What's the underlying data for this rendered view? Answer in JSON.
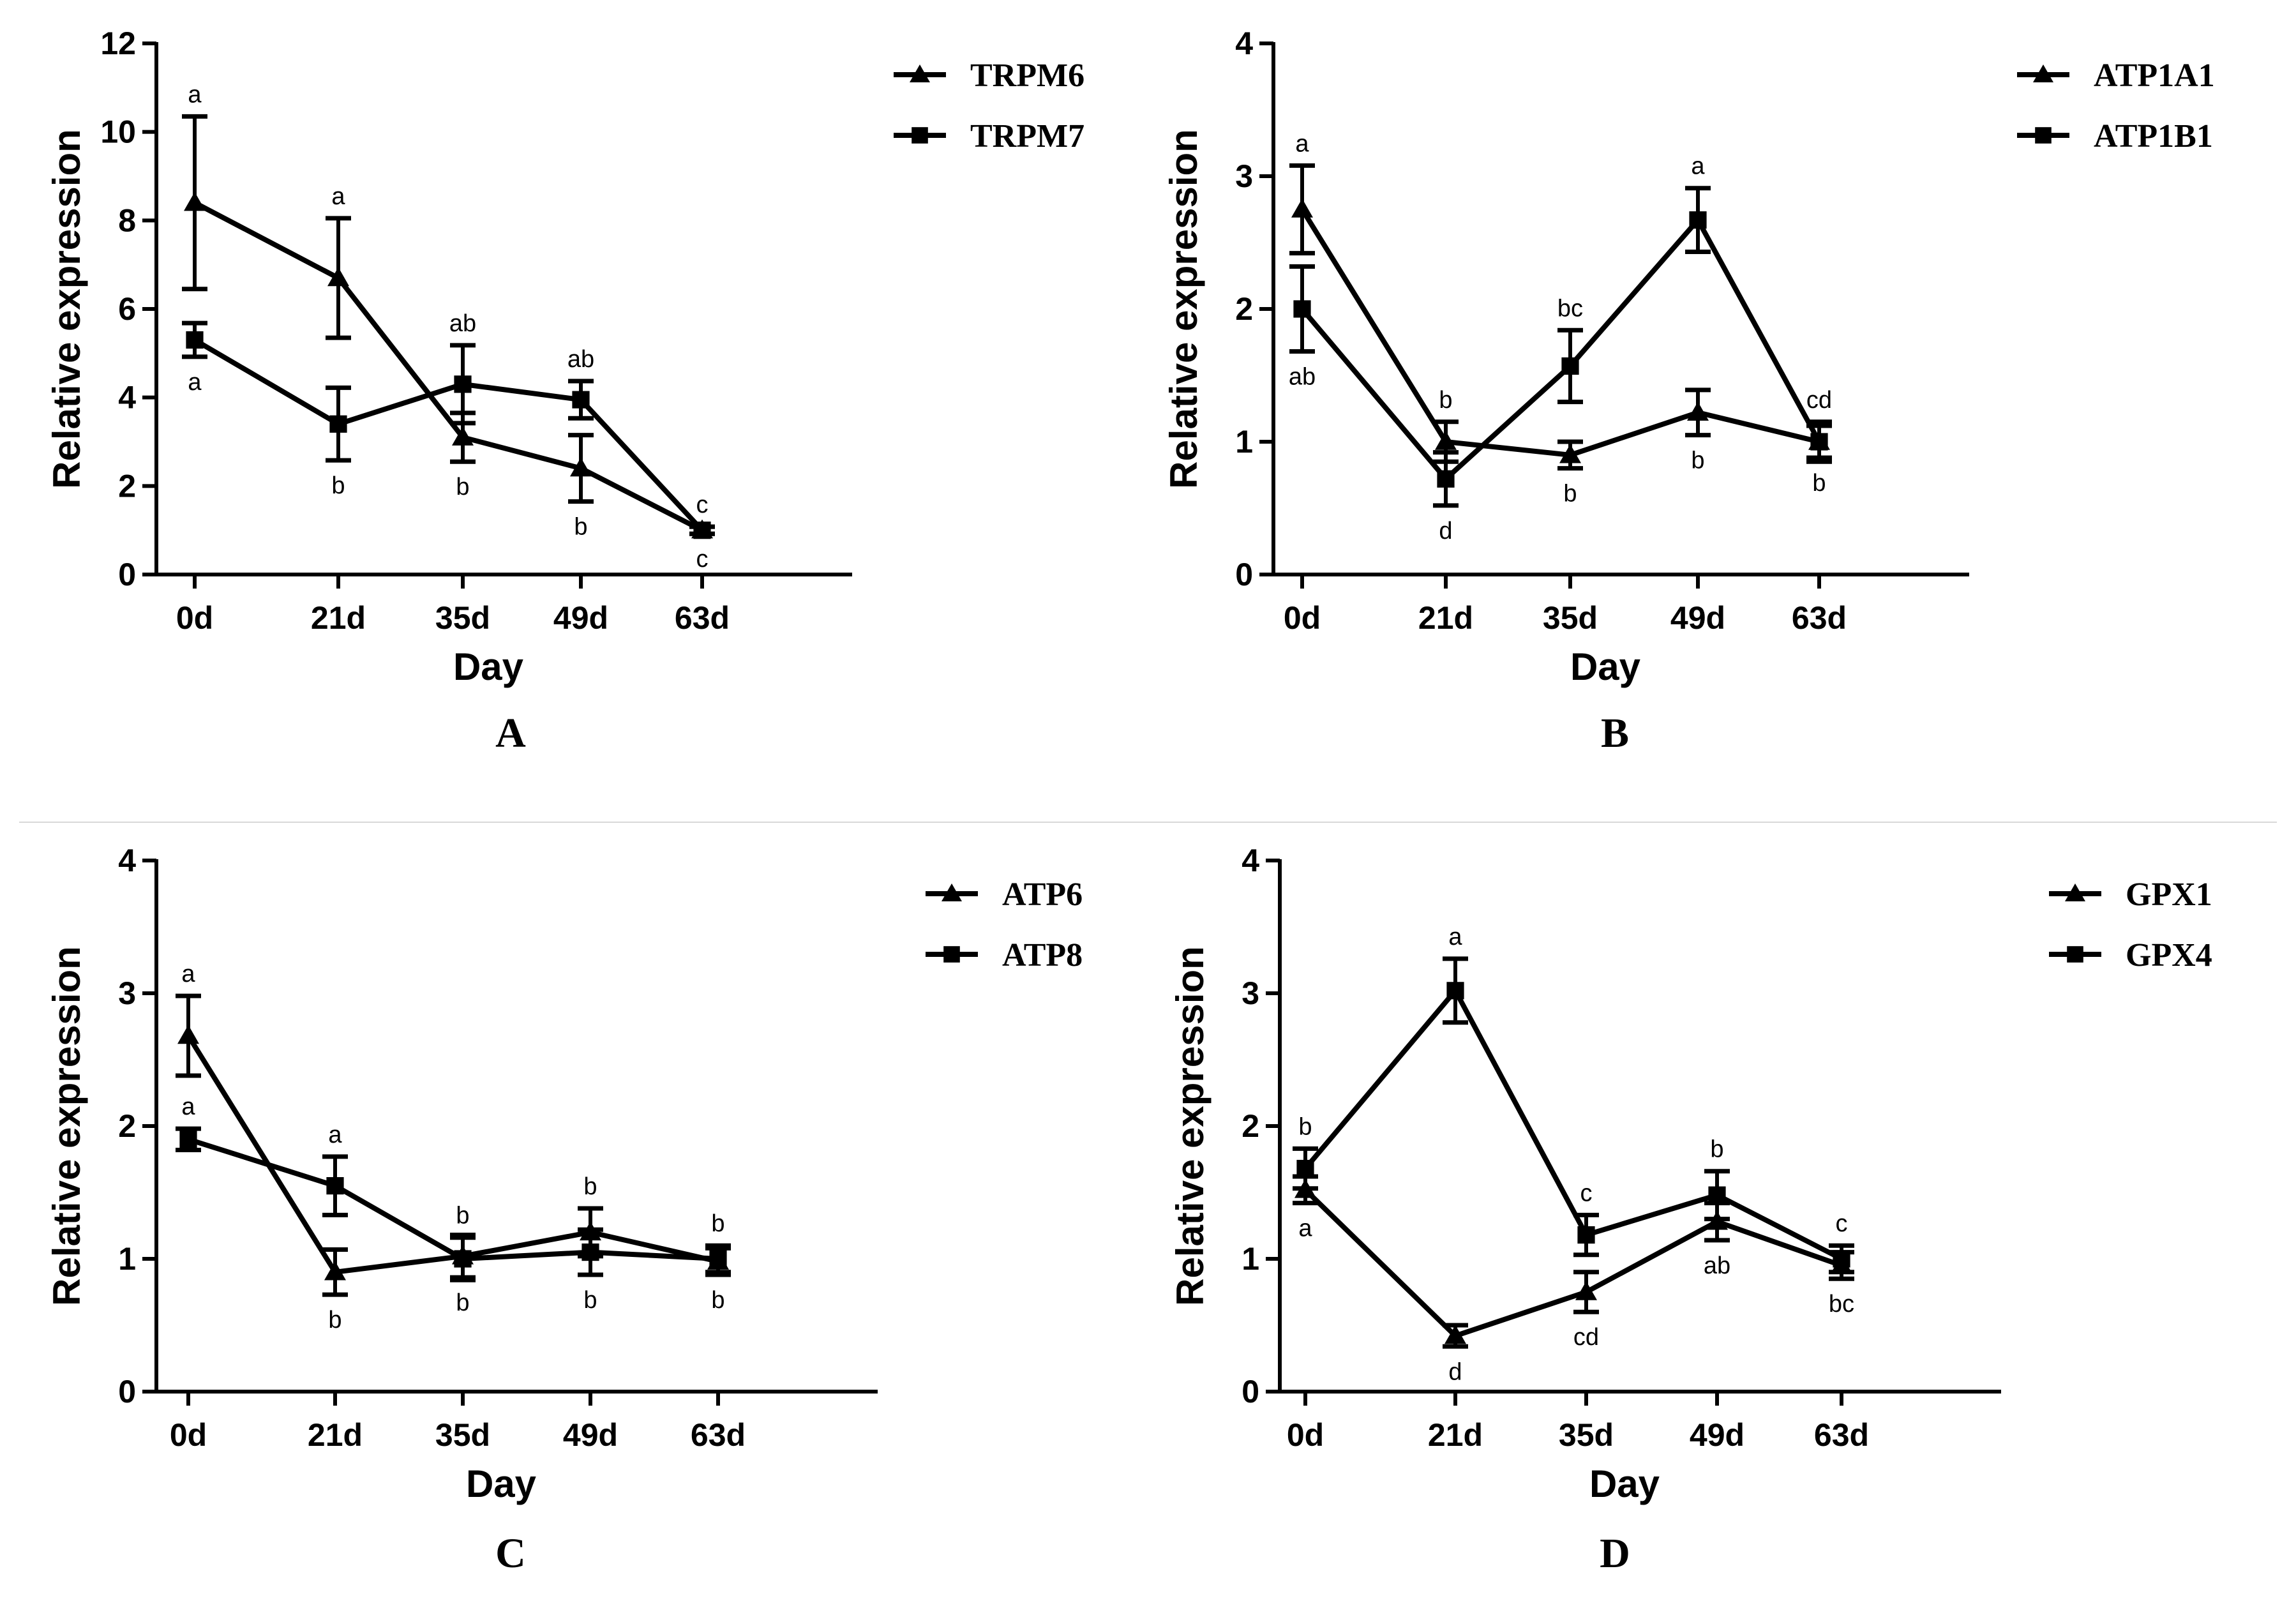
{
  "figure": {
    "panels": [
      "A",
      "B",
      "C",
      "D"
    ]
  },
  "chart_data": [
    {
      "type": "line",
      "panel_label": "A",
      "xlabel": "Day",
      "ylabel": "Relative expression",
      "categories": [
        "0d",
        "21d",
        "35d",
        "49d",
        "63d"
      ],
      "ylim": [
        0,
        12
      ],
      "yticks": [
        "0",
        "2",
        "4",
        "6",
        "8",
        "10",
        "12"
      ],
      "legend_position": "top-right",
      "series": [
        {
          "name": "TRPM6",
          "marker": "triangle",
          "values": [
            8.4,
            6.7,
            3.1,
            2.4,
            1.0
          ],
          "errors": [
            1.95,
            1.35,
            0.55,
            0.75,
            0.08
          ],
          "letters": [
            "a",
            "a",
            "b",
            "b",
            "c"
          ],
          "letter_pos": [
            "above",
            "above",
            "below",
            "below",
            "below"
          ]
        },
        {
          "name": "TRPM7",
          "marker": "square",
          "values": [
            5.3,
            3.4,
            4.3,
            3.95,
            1.0
          ],
          "errors": [
            0.38,
            0.82,
            0.88,
            0.42,
            0.08
          ],
          "letters": [
            "a",
            "b",
            "ab",
            "ab",
            "c"
          ],
          "letter_pos": [
            "below",
            "below",
            "above",
            "above",
            "above"
          ]
        }
      ]
    },
    {
      "type": "line",
      "panel_label": "B",
      "xlabel": "Day",
      "ylabel": "Relative expression",
      "categories": [
        "0d",
        "21d",
        "35d",
        "49d",
        "63d"
      ],
      "ylim": [
        0,
        4
      ],
      "yticks": [
        "0",
        "1",
        "2",
        "3",
        "4"
      ],
      "legend_position": "top-right",
      "series": [
        {
          "name": "ATP1A1",
          "marker": "triangle",
          "values": [
            2.75,
            1.0,
            0.9,
            1.22,
            1.0
          ],
          "errors": [
            0.33,
            0.15,
            0.1,
            0.17,
            0.12
          ],
          "letters": [
            "a",
            "b",
            "b",
            "b",
            "b"
          ],
          "letter_pos": [
            "above",
            "above",
            "below",
            "below",
            "below"
          ]
        },
        {
          "name": "ATP1B1",
          "marker": "square",
          "values": [
            2.0,
            0.72,
            1.57,
            2.67,
            1.0
          ],
          "errors": [
            0.32,
            0.2,
            0.27,
            0.24,
            0.15
          ],
          "letters": [
            "ab",
            "d",
            "bc",
            "a",
            "cd"
          ],
          "letter_pos": [
            "below",
            "below",
            "above",
            "above",
            "above"
          ]
        }
      ]
    },
    {
      "type": "line",
      "panel_label": "C",
      "xlabel": "Day",
      "ylabel": "Relative expression",
      "categories": [
        "0d",
        "21d",
        "35d",
        "49d",
        "63d"
      ],
      "ylim": [
        0,
        4
      ],
      "yticks": [
        "0",
        "1",
        "2",
        "3",
        "4"
      ],
      "legend_position": "top-right",
      "series": [
        {
          "name": "ATP6",
          "marker": "triangle",
          "values": [
            2.68,
            0.9,
            1.02,
            1.2,
            0.98
          ],
          "errors": [
            0.3,
            0.17,
            0.16,
            0.18,
            0.1
          ],
          "letters": [
            "a",
            "b",
            "b",
            "b",
            "b"
          ],
          "letter_pos": [
            "above",
            "below",
            "below",
            "above",
            "below"
          ]
        },
        {
          "name": "ATP8",
          "marker": "square",
          "values": [
            1.9,
            1.55,
            1.0,
            1.05,
            1.0
          ],
          "errors": [
            0.08,
            0.22,
            0.16,
            0.17,
            0.1
          ],
          "letters": [
            "a",
            "a",
            "b",
            "b",
            "b"
          ],
          "letter_pos": [
            "above",
            "above",
            "above",
            "below",
            "above"
          ]
        }
      ]
    },
    {
      "type": "line",
      "panel_label": "D",
      "xlabel": "Day",
      "ylabel": "Relative expression",
      "categories": [
        "0d",
        "21d",
        "35d",
        "49d",
        "63d"
      ],
      "ylim": [
        0,
        4
      ],
      "yticks": [
        "0",
        "1",
        "2",
        "3",
        "4"
      ],
      "legend_position": "top-right",
      "series": [
        {
          "name": "GPX1",
          "marker": "triangle",
          "values": [
            1.52,
            0.42,
            0.75,
            1.28,
            0.95
          ],
          "errors": [
            0.1,
            0.08,
            0.15,
            0.14,
            0.1
          ],
          "letters": [
            "a",
            "d",
            "cd",
            "ab",
            "bc"
          ],
          "letter_pos": [
            "below",
            "below",
            "below",
            "below",
            "below"
          ]
        },
        {
          "name": "GPX4",
          "marker": "square",
          "values": [
            1.68,
            3.02,
            1.18,
            1.48,
            1.0
          ],
          "errors": [
            0.15,
            0.24,
            0.15,
            0.18,
            0.1
          ],
          "letters": [
            "b",
            "a",
            "c",
            "b",
            "c"
          ],
          "letter_pos": [
            "above",
            "above",
            "above",
            "above",
            "above"
          ]
        }
      ]
    }
  ]
}
